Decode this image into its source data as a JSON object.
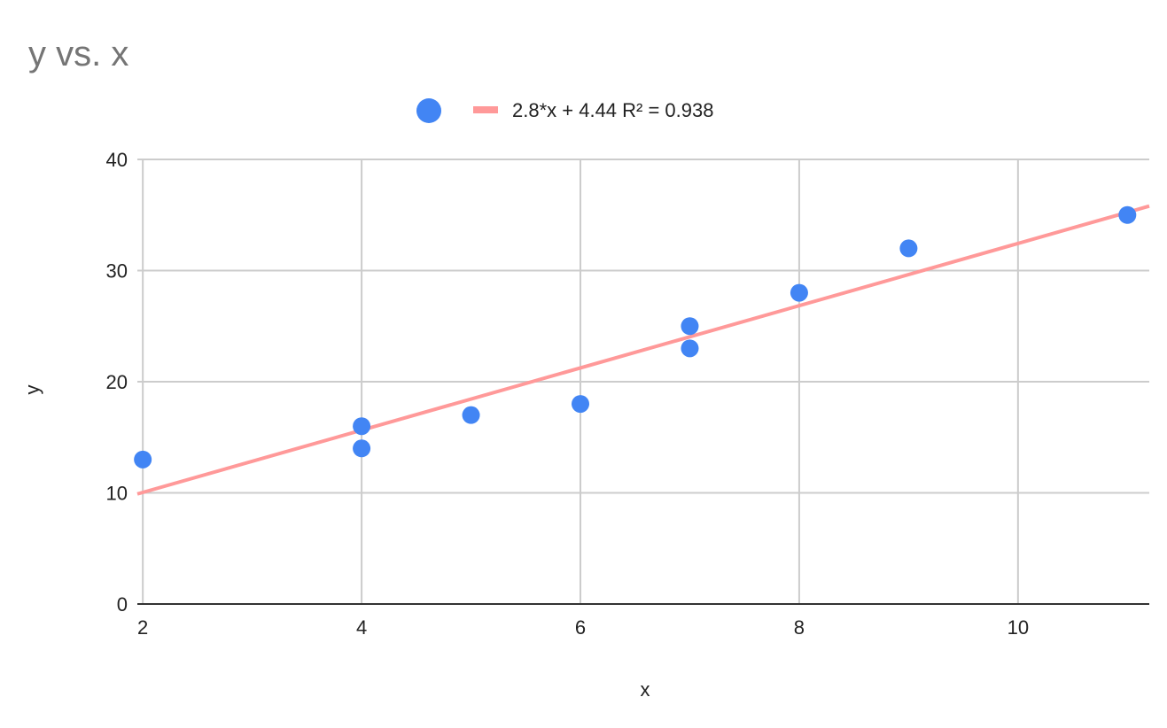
{
  "chart_data": {
    "type": "scatter",
    "title": "y vs. x",
    "xlabel": "x",
    "ylabel": "y",
    "xlim": [
      1.95,
      11.2
    ],
    "ylim": [
      0,
      40
    ],
    "x_ticks": [
      2,
      4,
      6,
      8,
      10
    ],
    "y_ticks": [
      0,
      10,
      20,
      30,
      40
    ],
    "grid": true,
    "legend_position": "top",
    "series": [
      {
        "name": "",
        "color": "#4285f4",
        "points": [
          {
            "x": 2,
            "y": 13
          },
          {
            "x": 4,
            "y": 16
          },
          {
            "x": 4,
            "y": 14
          },
          {
            "x": 5,
            "y": 17
          },
          {
            "x": 6,
            "y": 18
          },
          {
            "x": 7,
            "y": 25
          },
          {
            "x": 7,
            "y": 23
          },
          {
            "x": 8,
            "y": 28
          },
          {
            "x": 9,
            "y": 32
          },
          {
            "x": 11,
            "y": 35
          }
        ]
      }
    ],
    "trendline": {
      "label": "2.8*x + 4.44 R² = 0.938",
      "slope": 2.8,
      "intercept": 4.44,
      "color": "#ff9999"
    }
  }
}
